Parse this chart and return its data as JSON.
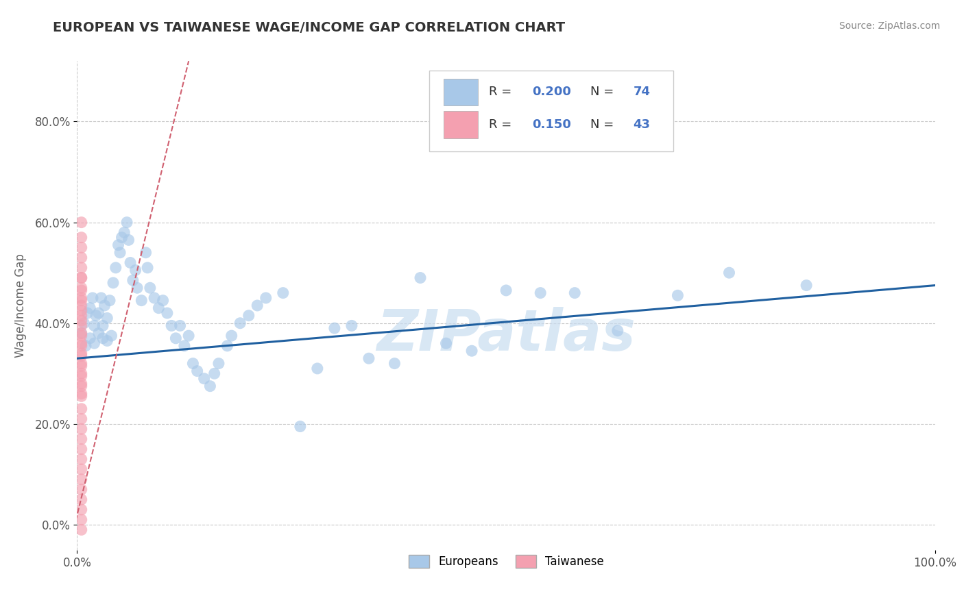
{
  "title": "EUROPEAN VS TAIWANESE WAGE/INCOME GAP CORRELATION CHART",
  "source_text": "Source: ZipAtlas.com",
  "ylabel": "Wage/Income Gap",
  "xlim": [
    0.0,
    1.0
  ],
  "ylim": [
    -0.05,
    0.92
  ],
  "yticks": [
    0.0,
    0.2,
    0.4,
    0.6,
    0.8
  ],
  "ytick_labels": [
    "0.0%",
    "20.0%",
    "40.0%",
    "60.0%",
    "80.0%"
  ],
  "xtick_labels": [
    "0.0%",
    "100.0%"
  ],
  "blue_color": "#a8c8e8",
  "pink_color": "#f4a0b0",
  "blue_line_color": "#2060a0",
  "pink_line_color": "#d06070",
  "background_color": "#ffffff",
  "grid_color": "#c8c8c8",
  "title_color": "#333333",
  "watermark_color": "#c8ddf0",
  "watermark_text": "ZIPatlas",
  "blue_r": "0.200",
  "blue_n": "74",
  "pink_r": "0.150",
  "pink_n": "43",
  "rn_color": "#4472c4",
  "blue_scatter_x": [
    0.005,
    0.008,
    0.01,
    0.012,
    0.015,
    0.015,
    0.018,
    0.02,
    0.02,
    0.022,
    0.025,
    0.025,
    0.028,
    0.03,
    0.03,
    0.032,
    0.035,
    0.035,
    0.038,
    0.04,
    0.042,
    0.045,
    0.048,
    0.05,
    0.052,
    0.055,
    0.058,
    0.06,
    0.062,
    0.065,
    0.068,
    0.07,
    0.075,
    0.08,
    0.082,
    0.085,
    0.09,
    0.095,
    0.1,
    0.105,
    0.11,
    0.115,
    0.12,
    0.125,
    0.13,
    0.135,
    0.14,
    0.148,
    0.155,
    0.16,
    0.165,
    0.175,
    0.18,
    0.19,
    0.2,
    0.21,
    0.22,
    0.24,
    0.26,
    0.28,
    0.3,
    0.32,
    0.34,
    0.37,
    0.4,
    0.43,
    0.46,
    0.5,
    0.54,
    0.58,
    0.63,
    0.7,
    0.76,
    0.85
  ],
  "blue_scatter_y": [
    0.38,
    0.4,
    0.355,
    0.42,
    0.37,
    0.43,
    0.45,
    0.36,
    0.395,
    0.415,
    0.38,
    0.42,
    0.45,
    0.37,
    0.395,
    0.435,
    0.365,
    0.41,
    0.445,
    0.375,
    0.48,
    0.51,
    0.555,
    0.54,
    0.57,
    0.58,
    0.6,
    0.565,
    0.52,
    0.485,
    0.505,
    0.47,
    0.445,
    0.54,
    0.51,
    0.47,
    0.45,
    0.43,
    0.445,
    0.42,
    0.395,
    0.37,
    0.395,
    0.355,
    0.375,
    0.32,
    0.305,
    0.29,
    0.275,
    0.3,
    0.32,
    0.355,
    0.375,
    0.4,
    0.415,
    0.435,
    0.45,
    0.46,
    0.195,
    0.31,
    0.39,
    0.395,
    0.33,
    0.32,
    0.49,
    0.36,
    0.345,
    0.465,
    0.46,
    0.46,
    0.385,
    0.455,
    0.5,
    0.475
  ],
  "pink_scatter_x": [
    0.005,
    0.005,
    0.005,
    0.005,
    0.005,
    0.005,
    0.005,
    0.005,
    0.005,
    0.005,
    0.005,
    0.005,
    0.005,
    0.005,
    0.005,
    0.005,
    0.005,
    0.005,
    0.005,
    0.005,
    0.005,
    0.005,
    0.005,
    0.005,
    0.005,
    0.005,
    0.005,
    0.005,
    0.005,
    0.005,
    0.005,
    0.005,
    0.005,
    0.005,
    0.005,
    0.005,
    0.005,
    0.005,
    0.005,
    0.005,
    0.005,
    0.005,
    0.005
  ],
  "pink_scatter_y": [
    0.6,
    0.57,
    0.55,
    0.53,
    0.51,
    0.49,
    0.47,
    0.45,
    0.435,
    0.415,
    0.395,
    0.375,
    0.355,
    0.335,
    0.315,
    0.295,
    0.275,
    0.255,
    0.23,
    0.21,
    0.19,
    0.17,
    0.15,
    0.13,
    0.11,
    0.09,
    0.07,
    0.05,
    0.03,
    0.01,
    -0.01,
    0.38,
    0.36,
    0.34,
    0.32,
    0.3,
    0.28,
    0.26,
    0.405,
    0.425,
    0.445,
    0.465,
    0.49
  ],
  "blue_trend_x0": 0.0,
  "blue_trend_x1": 1.0,
  "blue_trend_y0": 0.33,
  "blue_trend_y1": 0.475,
  "pink_trend_x0": -0.01,
  "pink_trend_x1": 0.13,
  "pink_trend_y0": -0.05,
  "pink_trend_y1": 0.92
}
